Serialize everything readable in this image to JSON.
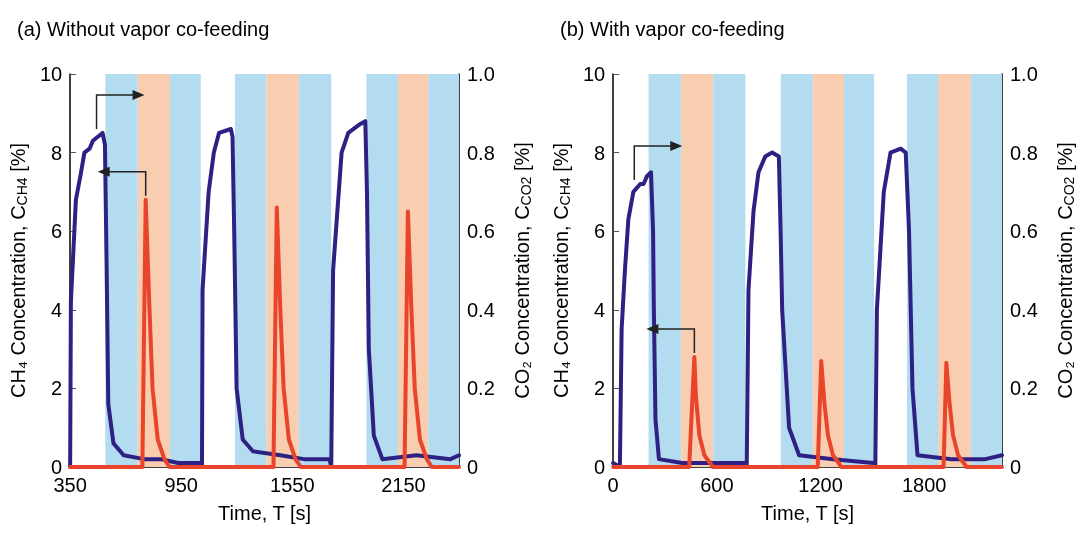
{
  "chart_data": [
    {
      "type": "line",
      "title": "(a) Without vapor co-feeding",
      "xlabel": "Time, T [s]",
      "ylabel": "CH₄ Concentration, C$_{CH4}$ [%]",
      "y2label": "CO₂ Concentration, C$_{CO2}$ [%]",
      "xlim": [
        350,
        2450
      ],
      "xticks": [
        350,
        950,
        1550,
        2150
      ],
      "ylim": [
        0,
        10
      ],
      "yticks": [
        0,
        2,
        4,
        6,
        8,
        10
      ],
      "y2lim": [
        0,
        1
      ],
      "y2ticks": [
        0,
        0.2,
        0.4,
        0.6,
        0.8,
        {
          "value": 1,
          "label": "1.0"
        }
      ],
      "grid": false,
      "marker": "none",
      "line_style": "solid",
      "bands": [
        {
          "axis": "x",
          "from": 540,
          "to": 715,
          "color": "#b3dcf0"
        },
        {
          "axis": "x",
          "from": 715,
          "to": 890,
          "color": "#f9cdb0"
        },
        {
          "axis": "x",
          "from": 890,
          "to": 1055,
          "color": "#b3dcf0"
        },
        {
          "axis": "x",
          "from": 1240,
          "to": 1410,
          "color": "#b3dcf0"
        },
        {
          "axis": "x",
          "from": 1410,
          "to": 1585,
          "color": "#f9cdb0"
        },
        {
          "axis": "x",
          "from": 1585,
          "to": 1760,
          "color": "#b3dcf0"
        },
        {
          "axis": "x",
          "from": 1950,
          "to": 2120,
          "color": "#b3dcf0"
        },
        {
          "axis": "x",
          "from": 2120,
          "to": 2285,
          "color": "#f9cdb0"
        },
        {
          "axis": "x",
          "from": 2285,
          "to": 2450,
          "color": "#b3dcf0"
        }
      ],
      "series": [
        {
          "color": "#2e2183",
          "axis": "y2",
          "x": [
            350,
            354,
            381,
            409,
            427,
            455,
            473,
            525,
            538,
            547,
            556,
            584,
            639,
            749,
            841,
            933,
            1052,
            1062,
            1065,
            1098,
            1126,
            1154,
            1218,
            1227,
            1236,
            1249,
            1282,
            1337,
            1485,
            1613,
            1751,
            1760,
            1770,
            1816,
            1852,
            1908,
            1944,
            1953,
            1963,
            1990,
            2036,
            2220,
            2404,
            2450
          ],
          "values": [
            0,
            0.42,
            0.68,
            0.75,
            0.8,
            0.81,
            0.83,
            0.85,
            0.82,
            0.51,
            0.16,
            0.06,
            0.03,
            0.02,
            0.02,
            0.01,
            0.01,
            0,
            0.45,
            0.7,
            0.8,
            0.85,
            0.86,
            0.84,
            0.6,
            0.2,
            0.07,
            0.04,
            0.03,
            0.02,
            0.02,
            0,
            0.5,
            0.8,
            0.85,
            0.87,
            0.88,
            0.7,
            0.3,
            0.08,
            0.02,
            0.03,
            0.02,
            0.03
          ]
        },
        {
          "color": "#e8452c",
          "axis": "y",
          "x": [
            350,
            740,
            758,
            777,
            795,
            823,
            859,
            887,
            1448,
            1466,
            1485,
            1503,
            1531,
            1567,
            1595,
            2156,
            2174,
            2193,
            2211,
            2239,
            2276,
            2303,
            2450
          ],
          "values": [
            0,
            0,
            6.8,
            4.2,
            2.0,
            0.7,
            0.2,
            0,
            0,
            6.6,
            4.0,
            2.0,
            0.7,
            0.2,
            0,
            0,
            6.5,
            4.0,
            2.0,
            0.7,
            0.2,
            0,
            0
          ]
        }
      ]
    },
    {
      "type": "line",
      "title": "(b) With vapor co-feeding",
      "xlabel": "Time, T [s]",
      "ylabel": "CH₄ Concentration, C$_{CH4}$ [%]",
      "y2label": "CO₂ Concentration, C$_{CO2}$ [%]",
      "xlim": [
        0,
        2250
      ],
      "xticks": [
        0,
        600,
        1200,
        1800
      ],
      "ylim": [
        0,
        10
      ],
      "yticks": [
        0,
        2,
        4,
        6,
        8,
        10
      ],
      "y2lim": [
        0,
        1
      ],
      "y2ticks": [
        0,
        0.2,
        0.4,
        0.6,
        0.8,
        {
          "value": 1,
          "label": "1.0"
        }
      ],
      "grid": false,
      "marker": "none",
      "line_style": "solid",
      "bands": [
        {
          "axis": "x",
          "from": 205,
          "to": 395,
          "color": "#b3dcf0"
        },
        {
          "axis": "x",
          "from": 395,
          "to": 580,
          "color": "#f9cdb0"
        },
        {
          "axis": "x",
          "from": 580,
          "to": 765,
          "color": "#b3dcf0"
        },
        {
          "axis": "x",
          "from": 970,
          "to": 1155,
          "color": "#b3dcf0"
        },
        {
          "axis": "x",
          "from": 1155,
          "to": 1335,
          "color": "#f9cdb0"
        },
        {
          "axis": "x",
          "from": 1335,
          "to": 1510,
          "color": "#b3dcf0"
        },
        {
          "axis": "x",
          "from": 1700,
          "to": 1880,
          "color": "#b3dcf0"
        },
        {
          "axis": "x",
          "from": 1880,
          "to": 2070,
          "color": "#f9cdb0"
        },
        {
          "axis": "x",
          "from": 2070,
          "to": 2250,
          "color": "#b3dcf0"
        }
      ],
      "series": [
        {
          "color": "#2e2183",
          "axis": "y2",
          "x": [
            0,
            39,
            49,
            68,
            88,
            117,
            157,
            176,
            196,
            219,
            231,
            235,
            245,
            265,
            400,
            600,
            763,
            773,
            783,
            812,
            841,
            880,
            920,
            959,
            969,
            978,
            1018,
            1076,
            1272,
            1507,
            1517,
            1526,
            1566,
            1605,
            1664,
            1693,
            1712,
            1732,
            1761,
            1957,
            2153,
            2250
          ],
          "values": [
            0.01,
            0,
            0.35,
            0.5,
            0.63,
            0.7,
            0.72,
            0.72,
            0.74,
            0.75,
            0.6,
            0.42,
            0.12,
            0.02,
            0.01,
            0.01,
            0.01,
            0,
            0.45,
            0.65,
            0.75,
            0.79,
            0.8,
            0.79,
            0.6,
            0.4,
            0.1,
            0.03,
            0.02,
            0.01,
            0,
            0.4,
            0.7,
            0.8,
            0.81,
            0.8,
            0.6,
            0.2,
            0.03,
            0.02,
            0.02,
            0.03
          ]
        },
        {
          "color": "#e8452c",
          "axis": "y",
          "x": [
            0,
            440,
            470,
            479,
            499,
            528,
            577,
            1184,
            1204,
            1223,
            1243,
            1272,
            1321,
            1912,
            1928,
            1947,
            1967,
            1996,
            2045,
            2250
          ],
          "values": [
            0,
            0,
            2.8,
            1.8,
            0.8,
            0.3,
            0,
            0,
            2.7,
            1.6,
            0.8,
            0.3,
            0,
            0,
            2.65,
            1.6,
            0.8,
            0.3,
            0,
            0
          ]
        }
      ]
    }
  ]
}
